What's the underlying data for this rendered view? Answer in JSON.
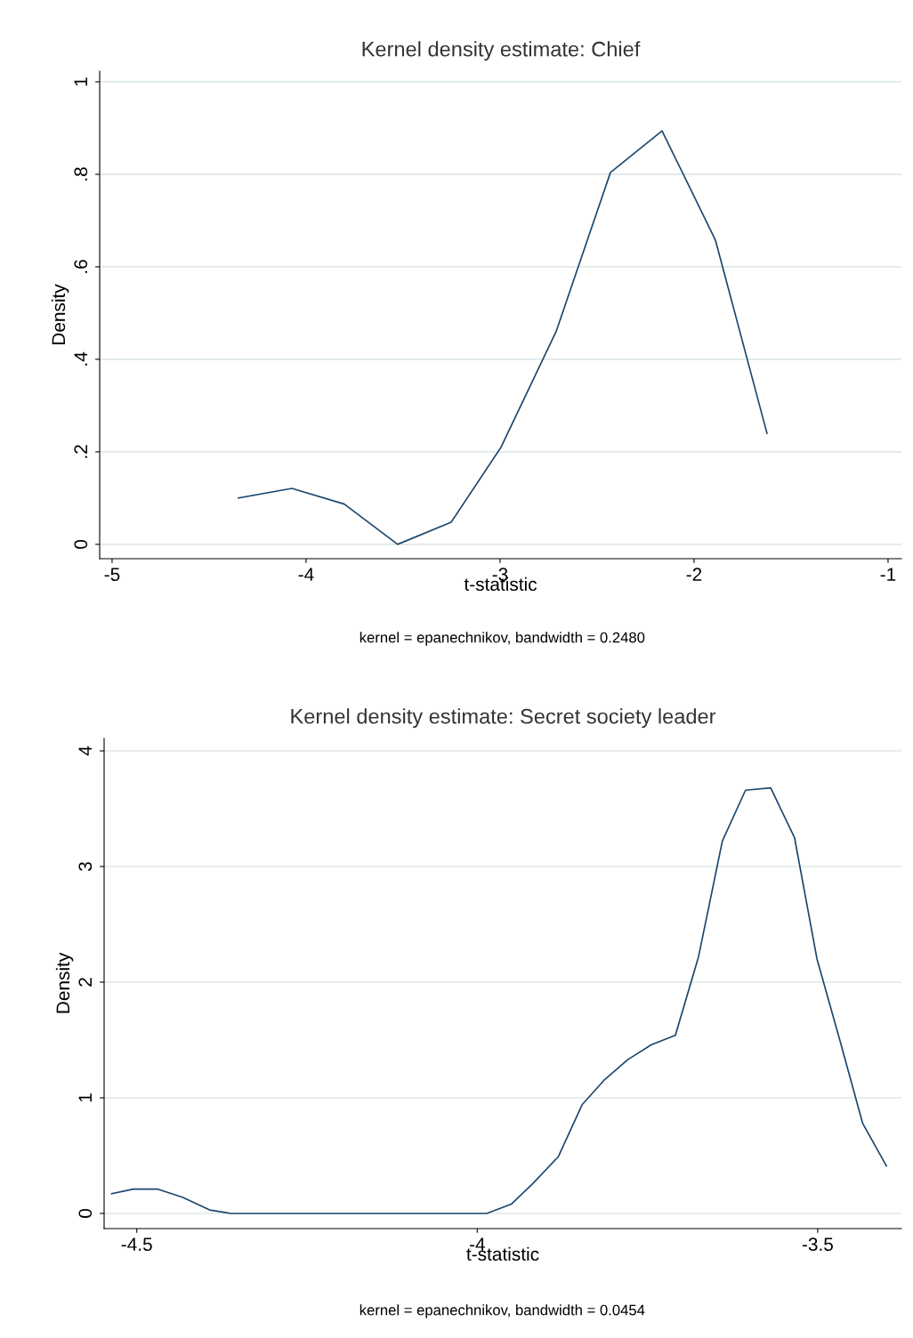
{
  "chart_data": [
    {
      "type": "line",
      "title": "Kernel density estimate: Chief",
      "xlabel": "t-statistic",
      "ylabel": "Density",
      "annotations": [
        "kernel = epanechnikov, bandwidth = 0.2480"
      ],
      "series": [
        {
          "color": "#1a476f",
          "x": [
            -4.349,
            -4.073,
            -3.803,
            -3.528,
            -3.252,
            -2.995,
            -2.711,
            -2.431,
            -2.165,
            -1.89,
            -1.624
          ],
          "values": [
            0.1,
            0.121,
            0.087,
            0.0,
            0.048,
            0.21,
            0.46,
            0.804,
            0.894,
            0.658,
            0.24
          ]
        }
      ],
      "xlim": [
        -5.064,
        -0.931
      ],
      "ylim": [
        -0.031,
        1.023
      ],
      "xticks": [
        -5,
        -4,
        -3,
        -2,
        -1
      ],
      "yticks": [
        {
          "value": 0,
          "label": "0"
        },
        {
          "value": 0.2,
          "label": ".2"
        },
        {
          "value": 0.4,
          "label": ".4"
        },
        {
          "value": 0.6,
          "label": ".6"
        },
        {
          "value": 0.8,
          "label": ".8"
        },
        {
          "value": 1,
          "label": "1"
        }
      ],
      "grid": "y",
      "marker": "none",
      "line_style": "solid",
      "legend": false
    },
    {
      "type": "line",
      "title": "Kernel density estimate: Secret society leader",
      "xlabel": "t-statistic",
      "ylabel": "Density",
      "annotations": [
        "kernel = epanechnikov, bandwidth = 0.0454"
      ],
      "series": [
        {
          "color": "#1a476f",
          "x": [
            -4.537,
            -4.505,
            -4.469,
            -4.433,
            -4.393,
            -4.362,
            -4.0,
            -3.986,
            -3.95,
            -3.918,
            -3.881,
            -3.846,
            -3.814,
            -3.779,
            -3.744,
            -3.709,
            -3.675,
            -3.64,
            -3.606,
            -3.569,
            -3.534,
            -3.501,
            -3.468,
            -3.434,
            -3.399
          ],
          "values": [
            0.17,
            0.21,
            0.21,
            0.14,
            0.03,
            0.0,
            0.0,
            0.0,
            0.08,
            0.26,
            0.49,
            0.94,
            1.15,
            1.33,
            1.46,
            1.54,
            2.22,
            3.22,
            3.66,
            3.68,
            3.25,
            2.2,
            1.51,
            0.78,
            0.41
          ]
        }
      ],
      "xlim": [
        -4.548,
        -3.377
      ],
      "ylim": [
        -0.131,
        4.108
      ],
      "xticks": [
        -4.5,
        -4,
        -3.5
      ],
      "yticks": [
        0,
        1,
        2,
        3,
        4
      ],
      "grid": "y",
      "marker": "none",
      "line_style": "solid",
      "legend": false
    }
  ]
}
